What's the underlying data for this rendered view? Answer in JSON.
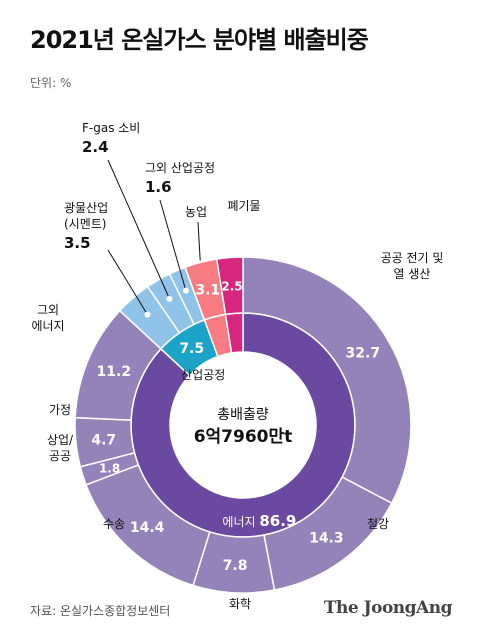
{
  "title": "2021년 온실가스 분야별 배출비중",
  "unit": "단위: %",
  "source": "자료: 온실가스종합정보센터",
  "brand": "The JoongAng",
  "chart_data": {
    "type": "pie",
    "subtype": "donut",
    "center_label": "총배출량",
    "center_value": "6억7960만t",
    "inner": [
      {
        "name": "에너지",
        "value": 86.9,
        "color": "#6a4aa0"
      },
      {
        "name": "산업공정",
        "value": 7.5,
        "color": "#1ba3c8"
      },
      {
        "name": "농업",
        "value": 3.1,
        "color": "#f77c82"
      },
      {
        "name": "폐기물",
        "value": 2.5,
        "color": "#d6267e"
      }
    ],
    "outer": [
      {
        "name": "공공 전기 및 열 생산",
        "value": 32.7,
        "color": "#9483b8"
      },
      {
        "name": "철강",
        "value": 14.3,
        "color": "#9483b8"
      },
      {
        "name": "화학",
        "value": 7.8,
        "color": "#9483b8"
      },
      {
        "name": "수송",
        "value": 14.4,
        "color": "#9483b8"
      },
      {
        "name": "상업/공공",
        "value": 1.8,
        "color": "#9483b8"
      },
      {
        "name": "가정",
        "value": 4.7,
        "color": "#9483b8"
      },
      {
        "name": "그외 에너지",
        "value": 11.2,
        "color": "#9483b8"
      },
      {
        "name": "광물산업 (시멘트)",
        "value": 3.5,
        "color": "#8fc4e8"
      },
      {
        "name": "F-gas 소비",
        "value": 2.4,
        "color": "#8fc4e8"
      },
      {
        "name": "그외 산업공정",
        "value": 1.6,
        "color": "#8fc4e8"
      },
      {
        "name": "농업",
        "value": 3.1,
        "color": "#f77c82"
      },
      {
        "name": "폐기물",
        "value": 2.5,
        "color": "#d6267e"
      }
    ]
  }
}
